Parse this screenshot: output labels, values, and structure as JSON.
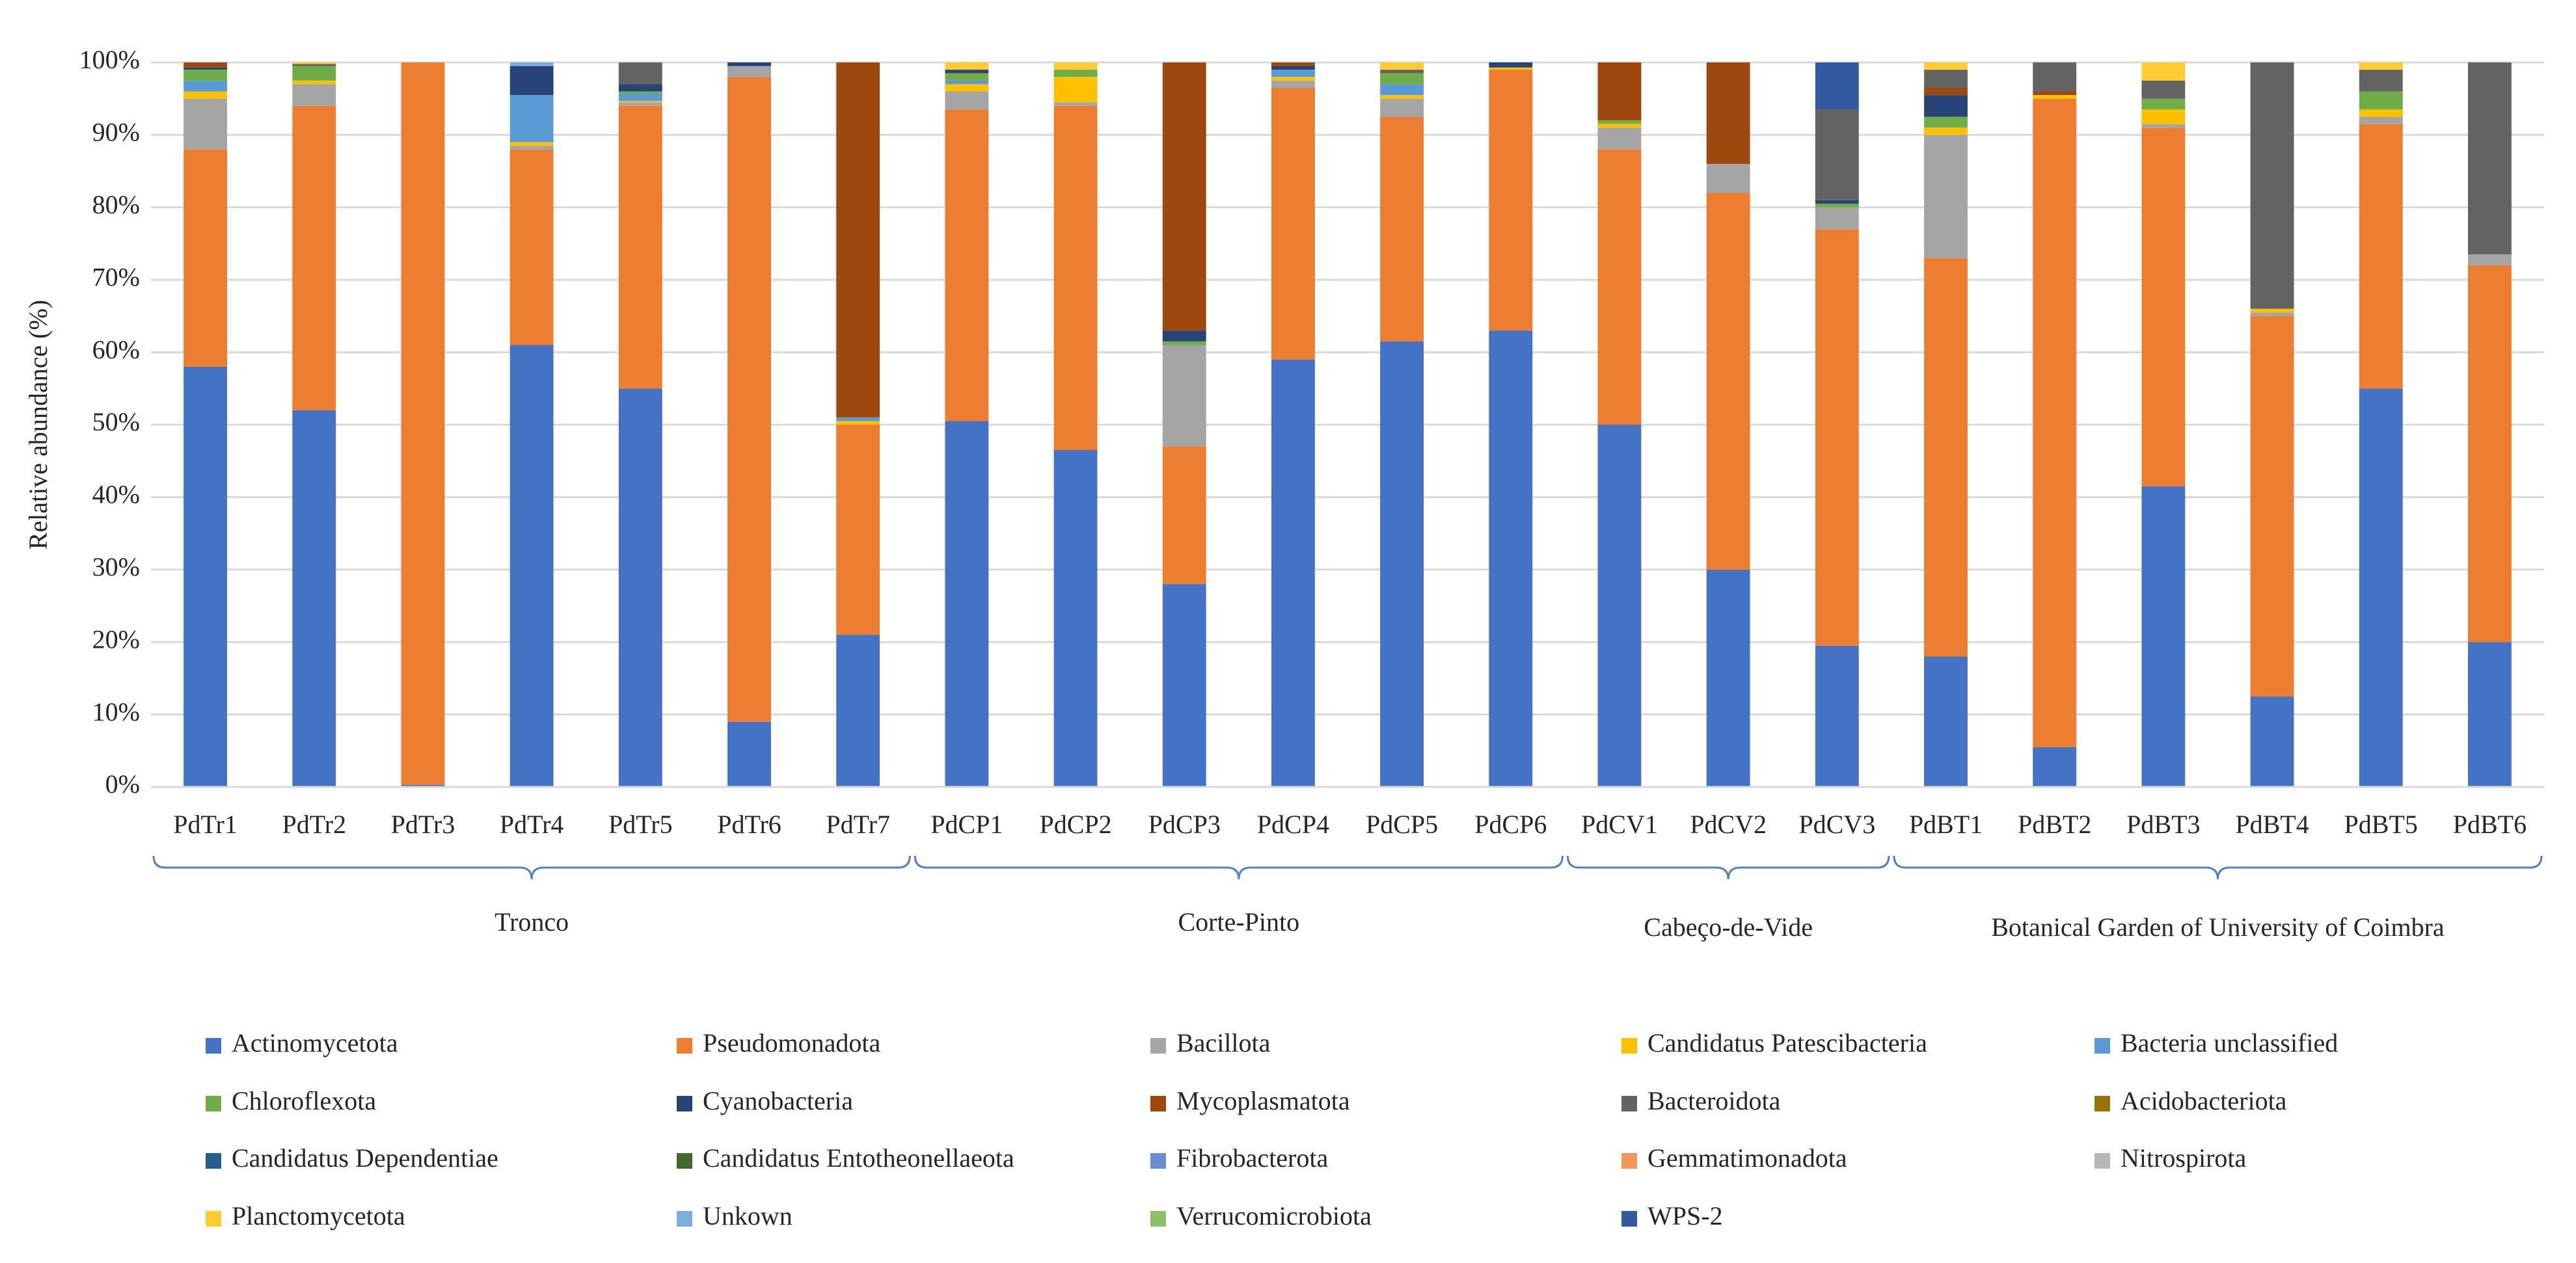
{
  "chart_data": {
    "type": "stacked_bar",
    "y_label": "Relative abundance (%)",
    "ylim": [
      0,
      100
    ],
    "yticks": [
      {
        "value": 0,
        "label": "0%"
      },
      {
        "value": 10,
        "label": "10%"
      },
      {
        "value": 20,
        "label": "20%"
      },
      {
        "value": 30,
        "label": "30%"
      },
      {
        "value": 40,
        "label": "40%"
      },
      {
        "value": 50,
        "label": "50%"
      },
      {
        "value": 60,
        "label": "60%"
      },
      {
        "value": 70,
        "label": "70%"
      },
      {
        "value": 80,
        "label": "80%"
      },
      {
        "value": 90,
        "label": "90%"
      },
      {
        "value": 100,
        "label": "100%"
      }
    ],
    "grid": true,
    "legend": "bottom",
    "groups": [
      {
        "name": "Tronco",
        "categories": [
          "PdTr1",
          "PdTr2",
          "PdTr3",
          "PdTr4",
          "PdTr5",
          "PdTr6",
          "PdTr7"
        ]
      },
      {
        "name": "Corte-Pinto",
        "categories": [
          "PdCP1",
          "PdCP2",
          "PdCP3",
          "PdCP4",
          "PdCP5",
          "PdCP6"
        ]
      },
      {
        "name": "Cabeço-de-Vide",
        "categories": [
          "PdCV1",
          "PdCV2",
          "PdCV3"
        ]
      },
      {
        "name": "Botanical Garden of University of Coimbra",
        "categories": [
          "PdBT1",
          "PdBT2",
          "PdBT3",
          "PdBT4",
          "PdBT5",
          "PdBT6"
        ]
      }
    ],
    "series": [
      {
        "name": "Actinomycetota",
        "color": "#4472c4",
        "values": [
          58,
          52,
          0.3,
          61,
          55,
          9,
          21,
          50.5,
          46.5,
          28,
          59,
          61.5,
          63,
          50,
          30,
          19.5,
          18,
          5.5,
          41.5,
          12.5,
          55,
          20
        ]
      },
      {
        "name": "Pseudomonadota",
        "color": "#ed7d31",
        "values": [
          30,
          42,
          99.7,
          27,
          39,
          89,
          29,
          43,
          47.5,
          19,
          37.5,
          31,
          36,
          38,
          52,
          57.5,
          55,
          89.5,
          49.5,
          52.5,
          36.5,
          52
        ]
      },
      {
        "name": "Bacillota",
        "color": "#a5a5a5",
        "values": [
          7,
          3,
          0,
          0.5,
          0.5,
          1.5,
          0,
          2.5,
          0.5,
          14,
          1,
          2.5,
          0,
          3,
          4,
          3,
          17,
          0,
          0.5,
          0.5,
          1,
          1.5
        ]
      },
      {
        "name": "Candidatus Patescibacteria",
        "color": "#ffc000",
        "values": [
          1,
          0.5,
          0,
          0.5,
          0.2,
          0,
          0.5,
          1,
          3.5,
          0,
          0.5,
          0.5,
          0.3,
          0.5,
          0,
          0,
          1,
          0.5,
          2,
          0.5,
          1,
          0
        ]
      },
      {
        "name": "Bacteria unclassified",
        "color": "#5b9bd5",
        "values": [
          1.5,
          0,
          0,
          6.5,
          1,
          0,
          0.5,
          0.5,
          0,
          0,
          1,
          1.5,
          0,
          0,
          0,
          0,
          0,
          0,
          0,
          0,
          0,
          0
        ]
      },
      {
        "name": "Chloroflexota",
        "color": "#70ad47",
        "values": [
          1.5,
          2,
          0,
          0,
          0.3,
          0,
          0,
          1,
          1,
          0.5,
          0,
          1.5,
          0,
          0.5,
          0,
          0.5,
          1.5,
          0,
          1.5,
          0,
          2.5,
          0
        ]
      },
      {
        "name": "Cyanobacteria",
        "color": "#264478",
        "values": [
          0.3,
          0,
          0,
          4,
          1,
          0.5,
          0,
          0.5,
          0,
          1.5,
          0.5,
          0,
          0.7,
          0,
          0,
          0.5,
          3,
          0,
          0,
          0,
          0,
          0
        ]
      },
      {
        "name": "Mycoplasmatota",
        "color": "#9e480e",
        "values": [
          0.7,
          0,
          0,
          0,
          0,
          0,
          49,
          0,
          0,
          37,
          0.5,
          0,
          0,
          8,
          14,
          0,
          1,
          0.5,
          0,
          0,
          0,
          0
        ]
      },
      {
        "name": "Bacteroidota",
        "color": "#636363",
        "values": [
          0,
          0.3,
          0,
          0,
          3,
          0,
          0,
          0,
          0,
          0,
          0,
          0.5,
          0,
          0,
          0,
          12.5,
          2.5,
          4,
          2.5,
          34,
          3,
          26.5
        ]
      },
      {
        "name": "Acidobacteriota",
        "color": "#997300",
        "values": [
          0,
          0,
          0,
          0,
          0,
          0,
          0,
          0,
          0,
          0,
          0,
          0,
          0,
          0,
          0,
          0,
          0,
          0,
          0,
          0,
          0,
          0
        ]
      },
      {
        "name": "Candidatus Dependentiae",
        "color": "#255e91",
        "values": [
          0,
          0,
          0,
          0,
          0,
          0,
          0,
          0,
          0,
          0,
          0,
          0,
          0,
          0,
          0,
          0,
          0,
          0,
          0,
          0,
          0,
          0
        ]
      },
      {
        "name": "Candidatus Entotheonellaeota",
        "color": "#43682b",
        "values": [
          0,
          0,
          0,
          0,
          0,
          0,
          0,
          0,
          0,
          0,
          0,
          0,
          0,
          0,
          0,
          0,
          0,
          0,
          0,
          0,
          0,
          0
        ]
      },
      {
        "name": "Fibrobacterota",
        "color": "#698ed0",
        "values": [
          0,
          0,
          0,
          0,
          0,
          0,
          0,
          0,
          0,
          0,
          0,
          0,
          0,
          0,
          0,
          0,
          0,
          0,
          0,
          0,
          0,
          0
        ]
      },
      {
        "name": "Gemmatimonadota",
        "color": "#f1975a",
        "values": [
          0,
          0,
          0,
          0,
          0,
          0,
          0,
          0,
          0,
          0,
          0,
          0,
          0,
          0,
          0,
          0,
          0,
          0,
          0,
          0,
          0,
          0
        ]
      },
      {
        "name": "Nitrospirota",
        "color": "#b7b7b7",
        "values": [
          0,
          0,
          0,
          0,
          0,
          0,
          0,
          0,
          0,
          0,
          0,
          0,
          0,
          0,
          0,
          0,
          0,
          0,
          0,
          0,
          0,
          0
        ]
      },
      {
        "name": "Planctomycetota",
        "color": "#ffcd33",
        "values": [
          0,
          0.2,
          0,
          0,
          0,
          0,
          0,
          1,
          1,
          0,
          0,
          1,
          0,
          0,
          0,
          0,
          1,
          0,
          2.5,
          0,
          1,
          0
        ]
      },
      {
        "name": "Unkown",
        "color": "#7cafdd",
        "values": [
          0,
          0,
          0,
          0.5,
          0,
          0,
          0,
          0,
          0,
          0,
          0,
          0,
          0,
          0,
          0,
          0,
          0,
          0,
          0,
          0,
          0,
          0
        ]
      },
      {
        "name": "Verrucomicrobiota",
        "color": "#8cc168",
        "values": [
          0,
          0,
          0,
          0,
          0,
          0,
          0,
          0,
          0,
          0,
          0,
          0,
          0,
          0,
          0,
          0,
          0,
          0,
          0,
          0,
          0,
          0
        ]
      },
      {
        "name": "WPS-2",
        "color": "#335aa1",
        "values": [
          0,
          0,
          0,
          0,
          0,
          0,
          0,
          0,
          0,
          0,
          0,
          0,
          0,
          0,
          0,
          6.5,
          0,
          0,
          0,
          0,
          0,
          0
        ]
      }
    ]
  }
}
